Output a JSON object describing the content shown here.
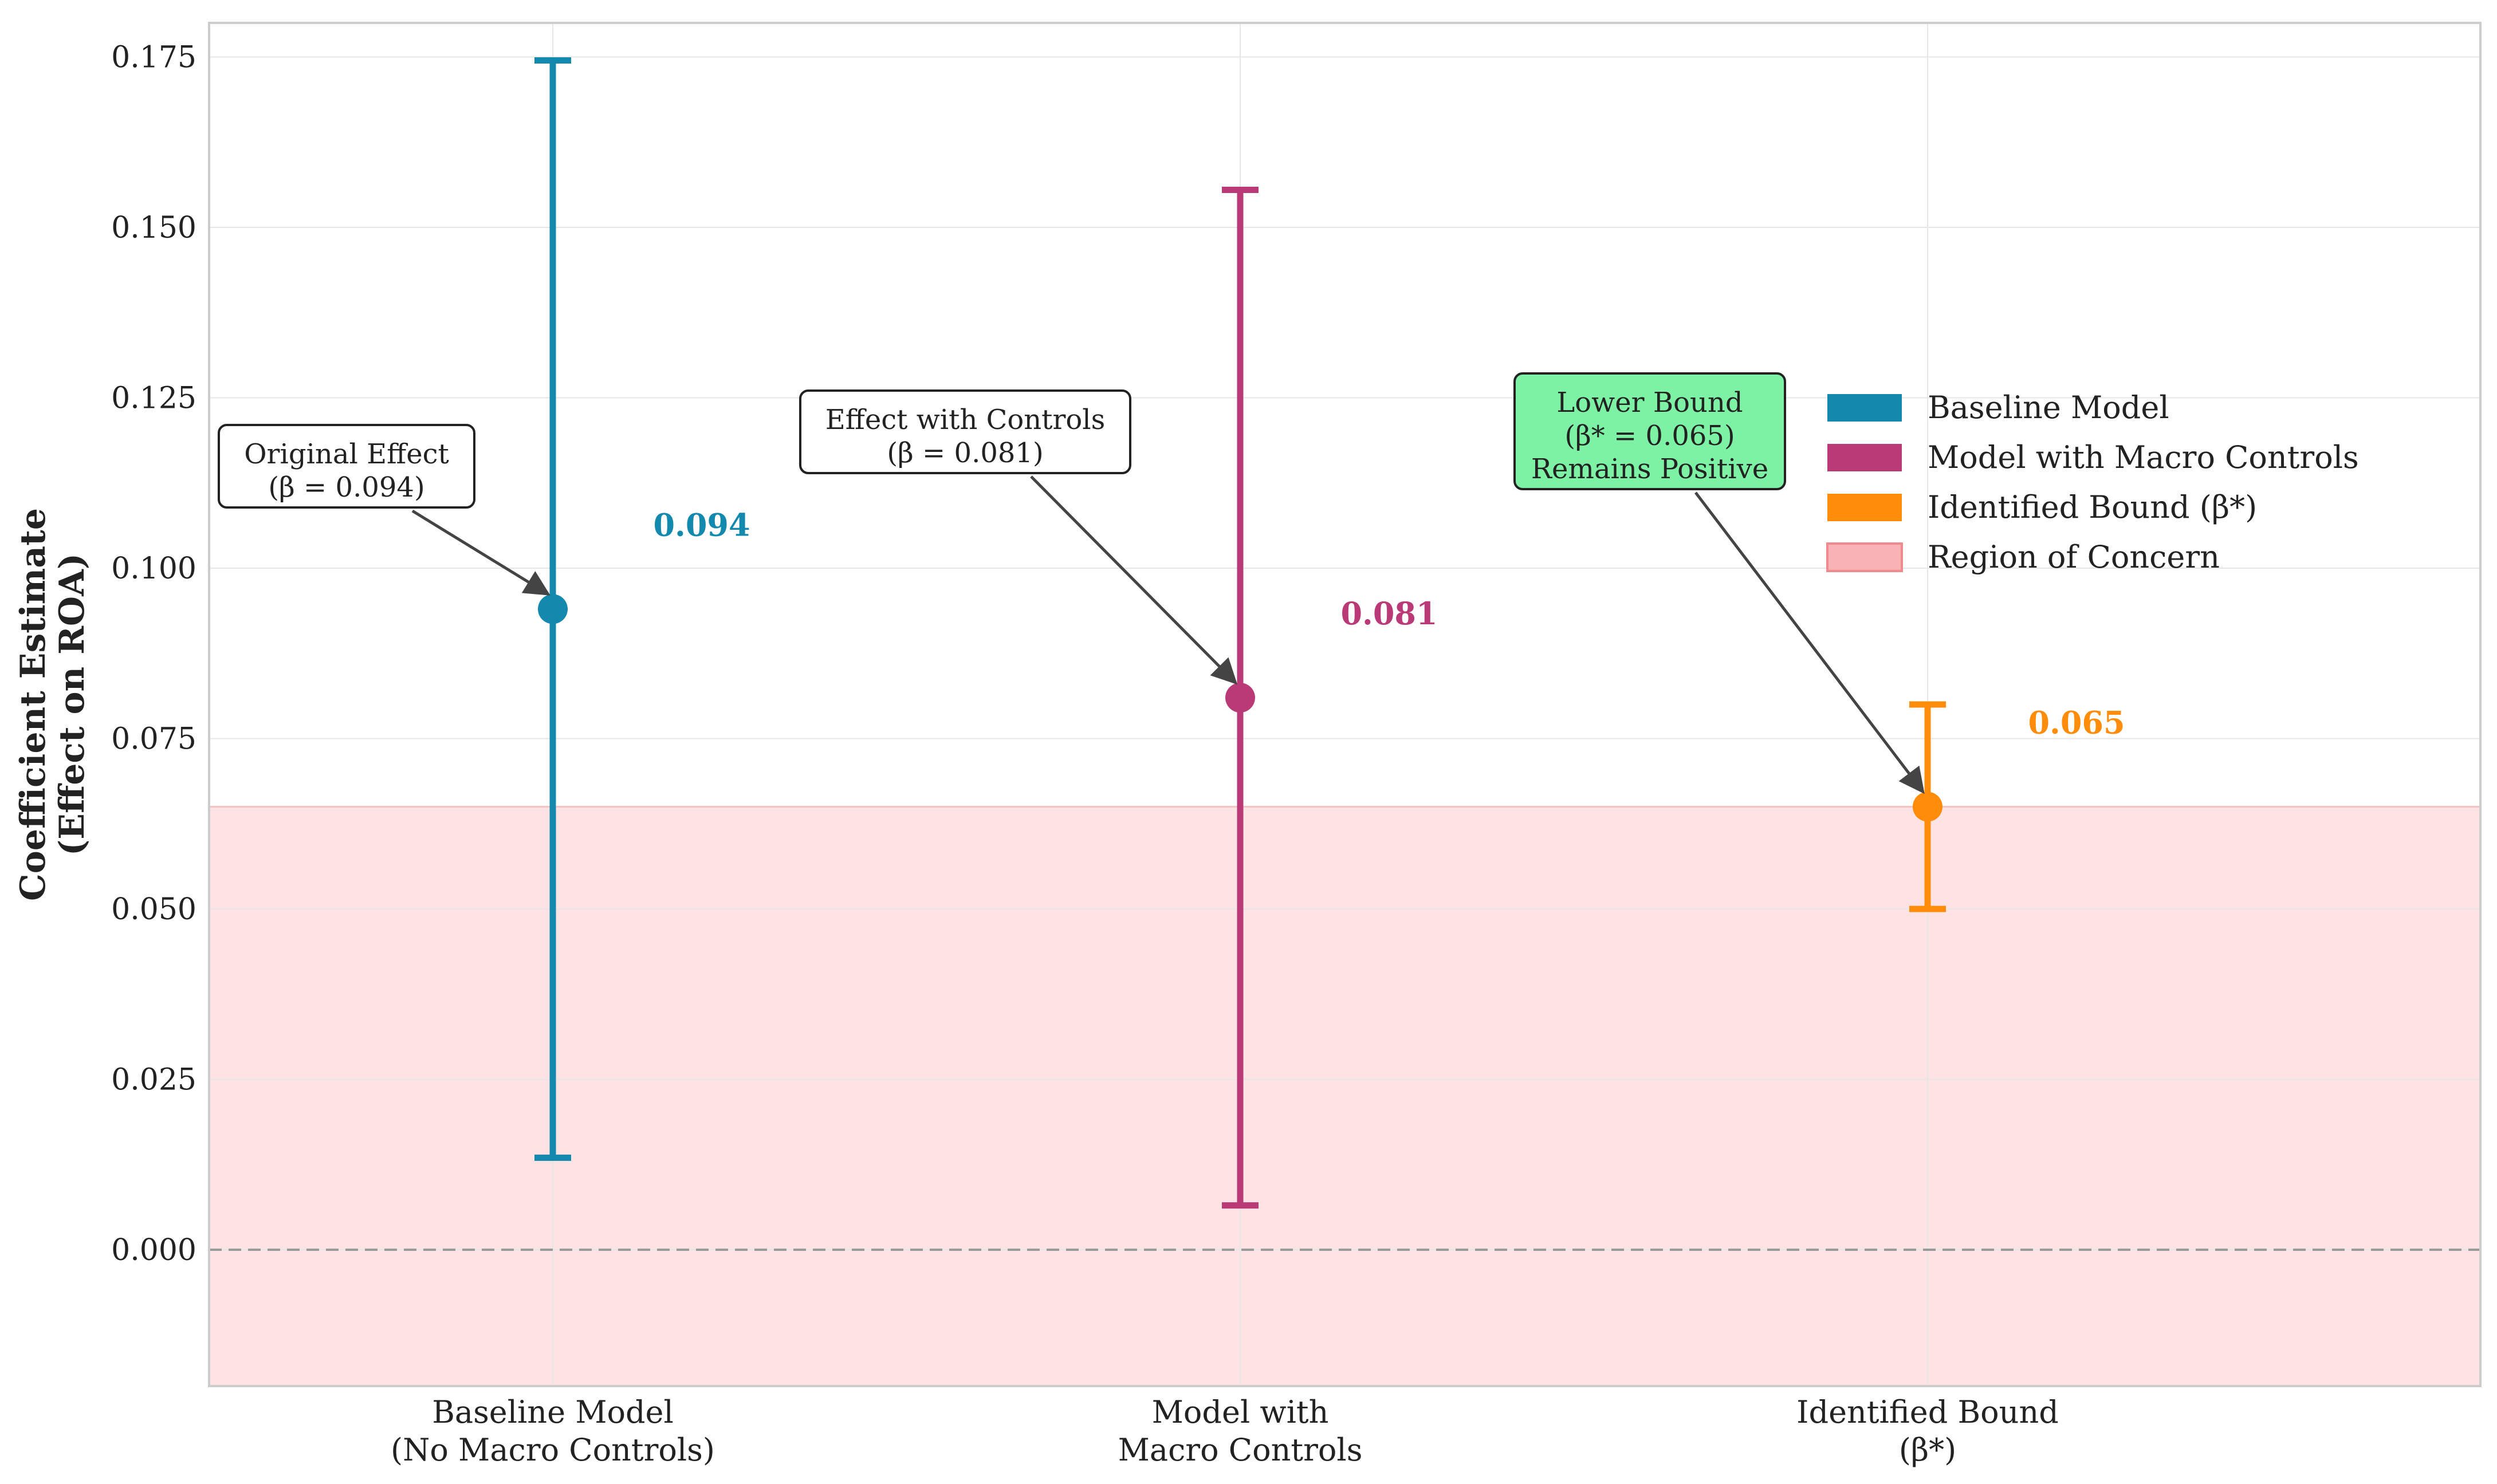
{
  "chart_data": {
    "type": "errorbar",
    "ylabel_lines": [
      "Coefficient Estimate",
      "(Effect on ROA)"
    ],
    "ylim": [
      -0.02,
      0.18
    ],
    "yticks": [
      "0.000",
      "0.025",
      "0.050",
      "0.075",
      "0.100",
      "0.125",
      "0.150",
      "0.175"
    ],
    "ytick_values": [
      0.0,
      0.025,
      0.05,
      0.075,
      0.1,
      0.125,
      0.15,
      0.175
    ],
    "grid": true,
    "zero_line": true,
    "series": [
      {
        "name": "Baseline Model",
        "category_lines": [
          "Baseline Model",
          "(No Macro Controls)"
        ],
        "estimate": 0.094,
        "ci_low": 0.0135,
        "ci_high": 0.1745,
        "value_label": "0.094",
        "color": "#1289AD",
        "annotation_lines": [
          "Original Effect",
          "(β = 0.094)"
        ],
        "annotation_bg": "#ffffff"
      },
      {
        "name": "Model with Macro Controls",
        "category_lines": [
          "Model with",
          "Macro Controls"
        ],
        "estimate": 0.081,
        "ci_low": 0.0065,
        "ci_high": 0.1555,
        "value_label": "0.081",
        "color": "#BA3A78",
        "annotation_lines": [
          "Effect with Controls",
          "(β = 0.081)"
        ],
        "annotation_bg": "#ffffff"
      },
      {
        "name": "Identified Bound (β*)",
        "category_lines": [
          "Identified Bound",
          "(β*)"
        ],
        "estimate": 0.065,
        "ci_low": 0.05,
        "ci_high": 0.08,
        "value_label": "0.065",
        "color": "#FF8C0A",
        "annotation_lines": [
          "Lower Bound",
          "(β* = 0.065)",
          "Remains Positive"
        ],
        "annotation_bg": "#7DF2A5"
      }
    ],
    "region_of_concern": {
      "from": -0.02,
      "to": 0.065,
      "color": "#FDE3E4"
    },
    "legend": [
      {
        "label": "Baseline Model",
        "color": "#1289AD"
      },
      {
        "label": "Model with Macro Controls",
        "color": "#BA3A78"
      },
      {
        "label": "Identified Bound (β*)",
        "color": "#FF8C0A"
      },
      {
        "label": "Region of Concern",
        "color": "#F9B3B5"
      }
    ],
    "legend_position": "upper-right"
  }
}
